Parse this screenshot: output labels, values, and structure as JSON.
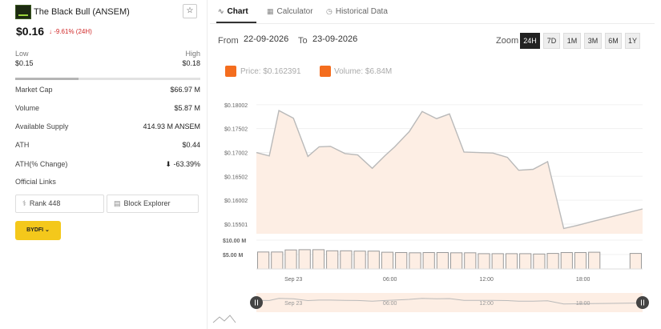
{
  "coin": {
    "name": "The Black Bull (ANSEM)",
    "price": "$0.16",
    "change": "↓ -9.61% (24H)",
    "star": "☆"
  },
  "range": {
    "low_label": "Low",
    "low_value": "$0.15",
    "high_label": "High",
    "high_value": "$0.18",
    "position_pct": 34
  },
  "stats": [
    {
      "label": "Market Cap",
      "value": "$66.97 M"
    },
    {
      "label": "Volume",
      "value": "$5.87 M"
    },
    {
      "label": "Available Supply",
      "value": "414.93 M ANSEM"
    },
    {
      "label": "ATH",
      "value": "$0.44"
    },
    {
      "label": "ATH(% Change)",
      "value": "⬇ -63.39%"
    },
    {
      "label": "Official Links",
      "value": ""
    }
  ],
  "links": {
    "rank": "Rank 448",
    "explorer": "Block Explorer"
  },
  "exchange_button": "BYDFI ⌄",
  "tabs": [
    {
      "label": "Chart",
      "icon": "∿",
      "active": true
    },
    {
      "label": "Calculator",
      "icon": "▦",
      "active": false
    },
    {
      "label": "Historical Data",
      "icon": "◷",
      "active": false
    }
  ],
  "dates": {
    "from_label": "From",
    "from_value": "22-09-2026",
    "to_label": "To",
    "to_value": "23-09-2026"
  },
  "zoom": {
    "label": "Zoom",
    "options": [
      "24H",
      "7D",
      "1M",
      "3M",
      "6M",
      "1Y"
    ],
    "selected": "24H"
  },
  "legend": {
    "price": "Price: $0.162391",
    "volume": "Volume: $6.84M"
  },
  "colors": {
    "accent": "#f46d1e",
    "area_fill": "#fdeee4",
    "price_line": "#b9b9b9",
    "down": "#d02828",
    "exchange": "#f4c81b"
  },
  "chart_data": {
    "type": "area",
    "title": "",
    "ylim": [
      0.153,
      0.1815
    ],
    "price_ticks": [
      "$0.18002",
      "$0.17502",
      "$0.17002",
      "$0.16502",
      "$0.16002",
      "$0.15501"
    ],
    "price_tick_values": [
      0.18002,
      0.17502,
      0.17002,
      0.16502,
      0.16002,
      0.15501
    ],
    "time_ticks": [
      "Sep 23",
      "06:00",
      "12:00",
      "18:00"
    ],
    "time_tick_hours": [
      0,
      6,
      12,
      18
    ],
    "x_hours_start": -2.3,
    "x_hours_end": 21.7,
    "price_series": {
      "x": [
        -2.3,
        -1.5,
        -0.9,
        0.0,
        0.9,
        1.6,
        2.3,
        3.2,
        4.0,
        4.9,
        5.7,
        6.3,
        7.2,
        8.0,
        8.9,
        9.7,
        10.6,
        11.5,
        12.4,
        13.3,
        14.0,
        14.9,
        15.8,
        16.8,
        17.7,
        18.5,
        21.7
      ],
      "y": [
        0.17,
        0.1693,
        0.1788,
        0.1772,
        0.1692,
        0.1712,
        0.1713,
        0.1698,
        0.1695,
        0.1667,
        0.1694,
        0.1712,
        0.1744,
        0.1786,
        0.1771,
        0.1781,
        0.1701,
        0.17,
        0.1699,
        0.169,
        0.1663,
        0.1665,
        0.1681,
        0.1541,
        0.1548,
        0.1555,
        0.1582
      ]
    },
    "volume_ticks": [
      "$10.00 M",
      "$5.00 M"
    ],
    "volume_tick_values": [
      10,
      5
    ],
    "volume_series": {
      "name": "Volume",
      "values_m": [
        5.9,
        5.9,
        6.6,
        6.7,
        6.7,
        6.3,
        6.3,
        6.2,
        6.2,
        5.8,
        5.7,
        5.6,
        5.7,
        5.7,
        5.6,
        5.6,
        5.3,
        5.3,
        5.3,
        5.3,
        5.2,
        5.4,
        5.7,
        5.7,
        5.8,
        0,
        0,
        5.4
      ]
    }
  }
}
